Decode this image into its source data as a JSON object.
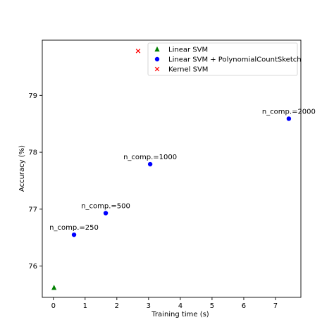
{
  "chart_data": {
    "type": "scatter",
    "title": "",
    "xlabel": "Training time (s)",
    "ylabel": "Accuracy (%)",
    "xlim": [
      -0.35,
      7.8
    ],
    "ylim": [
      75.45,
      79.97
    ],
    "xticks": [
      0,
      1,
      2,
      3,
      4,
      5,
      6,
      7
    ],
    "yticks": [
      76,
      77,
      78,
      79
    ],
    "grid": false,
    "legend_position": "top-right",
    "series": [
      {
        "name": "Linear SVM",
        "marker": "triangle",
        "color": "#008000",
        "points": [
          {
            "x": 0.02,
            "y": 75.62
          }
        ]
      },
      {
        "name": "Linear SVM + PolynomialCountSketch",
        "marker": "circle",
        "color": "#0000ff",
        "points": [
          {
            "x": 0.65,
            "y": 76.55,
            "label": "n_comp.=250"
          },
          {
            "x": 1.65,
            "y": 76.93,
            "label": "n_comp.=500"
          },
          {
            "x": 3.05,
            "y": 77.79,
            "label": "n_comp.=1000"
          },
          {
            "x": 7.42,
            "y": 78.59,
            "label": "n_comp.=2000"
          }
        ]
      },
      {
        "name": "Kernel SVM",
        "marker": "x",
        "color": "#ff0000",
        "points": [
          {
            "x": 2.67,
            "y": 79.78
          }
        ]
      }
    ]
  }
}
